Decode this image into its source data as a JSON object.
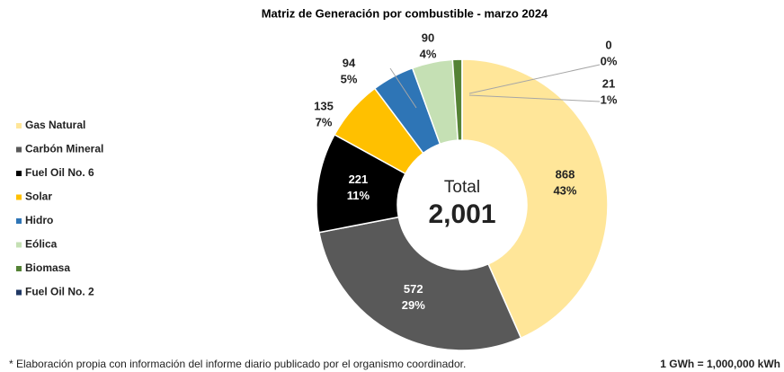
{
  "chart_data": {
    "type": "donut",
    "title": "Matriz de Generación por combustible - marzo 2024",
    "categories": [
      "Gas Natural",
      "Carbón Mineral",
      "Fuel Oil No. 6",
      "Solar",
      "Hidro",
      "Eólica",
      "Biomasa",
      "Fuel Oil No. 2"
    ],
    "values": [
      868,
      572,
      221,
      135,
      94,
      90,
      21,
      0
    ],
    "percent_labels": [
      "43%",
      "29%",
      "11%",
      "7%",
      "5%",
      "4%",
      "1%",
      "0%"
    ],
    "colors": [
      "#FFE699",
      "#595959",
      "#000000",
      "#FFC000",
      "#2E75B6",
      "#C5E0B4",
      "#548235",
      "#203864"
    ],
    "center_label": "Total",
    "total": {
      "value": 2001,
      "label": "2,001"
    },
    "legend": "left",
    "note": "* Elaboración propia con información del informe diario publicado por el organismo coordinador.",
    "unit_note": "1 GWh = 1,000,000 kWh"
  }
}
